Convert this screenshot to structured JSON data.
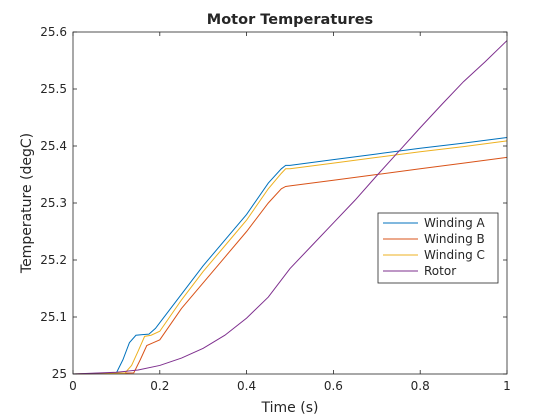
{
  "chart_data": {
    "type": "line",
    "title": "Motor Temperatures",
    "xlabel": "Time (s)",
    "ylabel": "Temperature (degC)",
    "xlim": [
      0,
      1
    ],
    "ylim": [
      25,
      25.6
    ],
    "xticks": [
      0,
      0.2,
      0.4,
      0.6,
      0.8,
      1
    ],
    "xtick_labels": [
      "0",
      "0.2",
      "0.4",
      "0.6",
      "0.8",
      "1"
    ],
    "yticks": [
      25,
      25.1,
      25.2,
      25.3,
      25.4,
      25.5,
      25.6
    ],
    "ytick_labels": [
      "25",
      "25.1",
      "25.2",
      "25.3",
      "25.4",
      "25.5",
      "25.6"
    ],
    "grid": false,
    "legend_position": "right",
    "series": [
      {
        "name": "Winding A",
        "color": "#0072BD",
        "x": [
          0,
          0.1,
          0.115,
          0.13,
          0.145,
          0.16,
          0.175,
          0.19,
          0.2,
          0.25,
          0.3,
          0.35,
          0.4,
          0.45,
          0.48,
          0.49,
          0.5,
          0.6,
          0.7,
          0.8,
          0.9,
          1.0
        ],
        "y": [
          25,
          25.002,
          25.025,
          25.055,
          25.068,
          25.069,
          25.07,
          25.08,
          25.09,
          25.14,
          25.19,
          25.235,
          25.28,
          25.335,
          25.36,
          25.366,
          25.366,
          25.376,
          25.386,
          25.396,
          25.405,
          25.415
        ]
      },
      {
        "name": "Winding B",
        "color": "#D95319",
        "x": [
          0,
          0.14,
          0.155,
          0.17,
          0.185,
          0.2,
          0.25,
          0.3,
          0.35,
          0.4,
          0.45,
          0.48,
          0.49,
          0.5,
          0.6,
          0.7,
          0.8,
          0.9,
          1.0
        ],
        "y": [
          25,
          25.002,
          25.025,
          25.05,
          25.055,
          25.06,
          25.115,
          25.16,
          25.205,
          25.25,
          25.3,
          25.325,
          25.329,
          25.33,
          25.34,
          25.35,
          25.36,
          25.37,
          25.38
        ]
      },
      {
        "name": "Winding C",
        "color": "#EDB120",
        "x": [
          0,
          0.12,
          0.135,
          0.15,
          0.165,
          0.18,
          0.2,
          0.25,
          0.3,
          0.35,
          0.4,
          0.45,
          0.48,
          0.49,
          0.5,
          0.6,
          0.7,
          0.8,
          0.9,
          1.0
        ],
        "y": [
          25,
          25.002,
          25.015,
          25.04,
          25.066,
          25.068,
          25.075,
          25.13,
          25.18,
          25.225,
          25.27,
          25.325,
          25.352,
          25.36,
          25.36,
          25.37,
          25.38,
          25.39,
          25.399,
          25.409
        ]
      },
      {
        "name": "Rotor",
        "color": "#7E2F8E",
        "x": [
          0,
          0.1,
          0.15,
          0.2,
          0.25,
          0.3,
          0.35,
          0.4,
          0.45,
          0.5,
          0.55,
          0.6,
          0.65,
          0.7,
          0.75,
          0.8,
          0.85,
          0.9,
          0.95,
          1.0
        ],
        "y": [
          25,
          25.003,
          25.007,
          25.015,
          25.028,
          25.045,
          25.068,
          25.098,
          25.135,
          25.185,
          25.225,
          25.265,
          25.305,
          25.348,
          25.39,
          25.432,
          25.473,
          25.513,
          25.548,
          25.585
        ]
      }
    ]
  }
}
